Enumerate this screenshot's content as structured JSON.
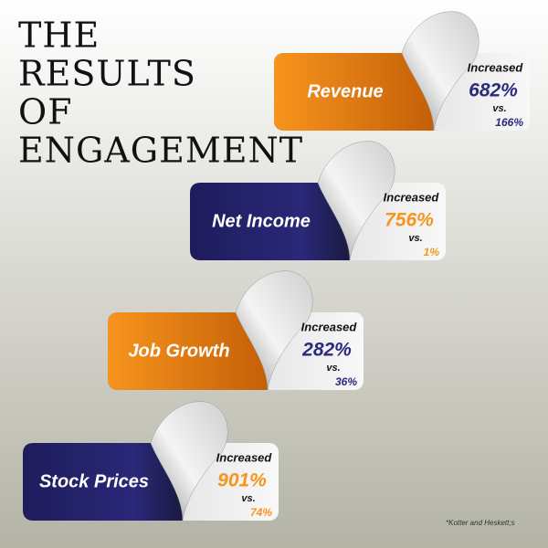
{
  "header": {
    "title_lines": [
      "THE",
      "RESULTS",
      "OF",
      "ENGAGEMENT"
    ]
  },
  "cards": [
    {
      "label": "Revenue",
      "increased": "Increased",
      "value": "682%",
      "vs": "vs.",
      "comparison": "166%"
    },
    {
      "label": "Net Income",
      "increased": "Increased",
      "value": "756%",
      "vs": "vs.",
      "comparison": "1%"
    },
    {
      "label": "Job Growth",
      "increased": "Increased",
      "value": "282%",
      "vs": "vs.",
      "comparison": "36%"
    },
    {
      "label": "Stock Prices",
      "increased": "Increased",
      "value": "901%",
      "vs": "vs.",
      "comparison": "74%"
    }
  ],
  "footnote": "*Kotter and Heskett;s"
}
